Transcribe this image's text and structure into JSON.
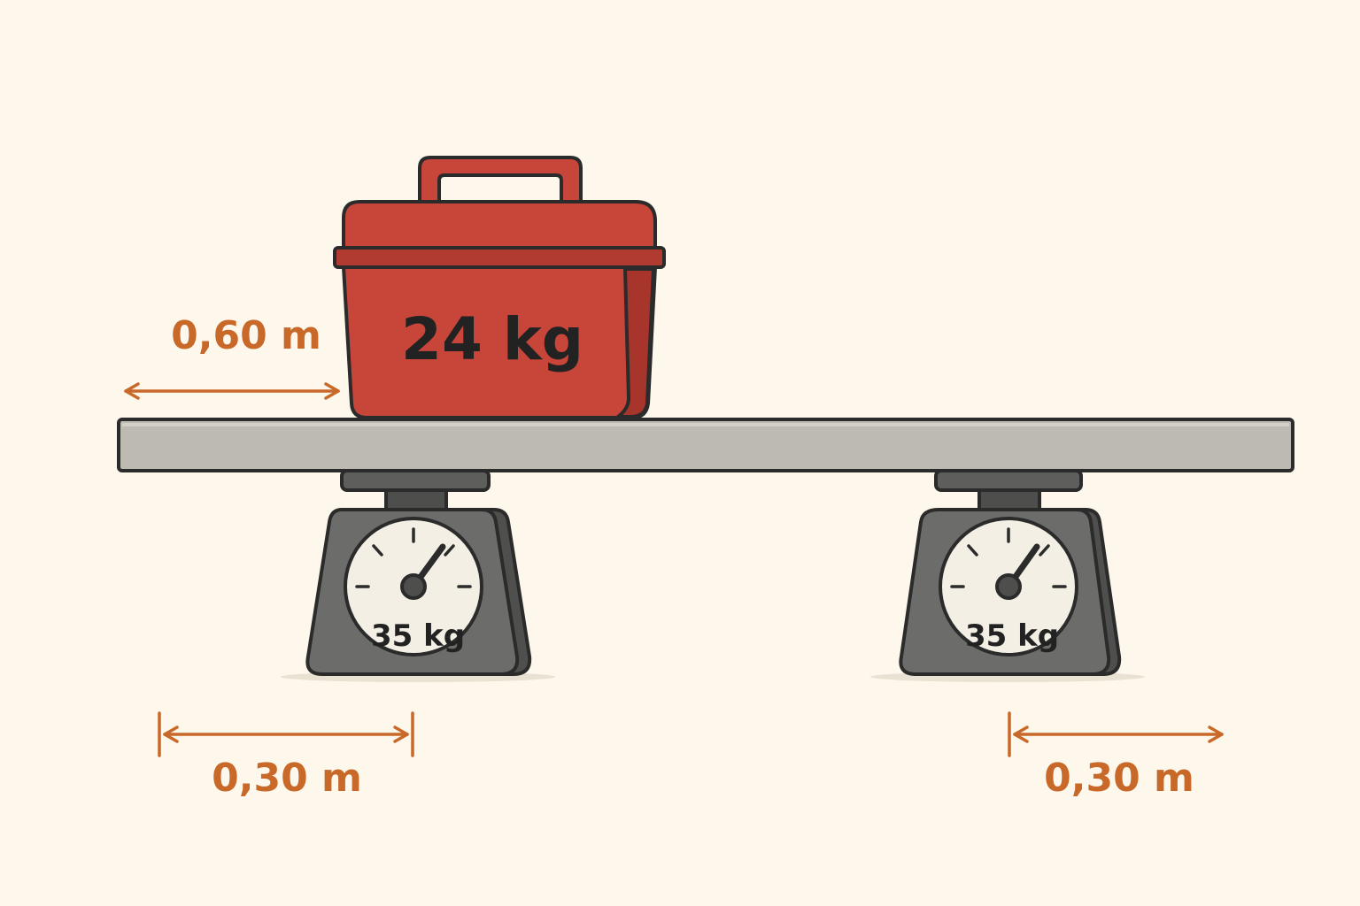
{
  "box": {
    "label": "24 kg"
  },
  "scales": [
    {
      "reading": "35 kg"
    },
    {
      "reading": "35 kg"
    }
  ],
  "dimensions": {
    "box_offset": "0,60 m",
    "left_scale_offset": "0,30 m",
    "right_scale_offset": "0,30 m"
  },
  "colors": {
    "background": "#fdf7ec",
    "box": "#c8453a",
    "box_shade": "#a8352c",
    "beam": "#bdbbb1",
    "scale_body": "#6c6c6a",
    "dimension": "#c8692a",
    "outline": "#2b2b2b"
  }
}
